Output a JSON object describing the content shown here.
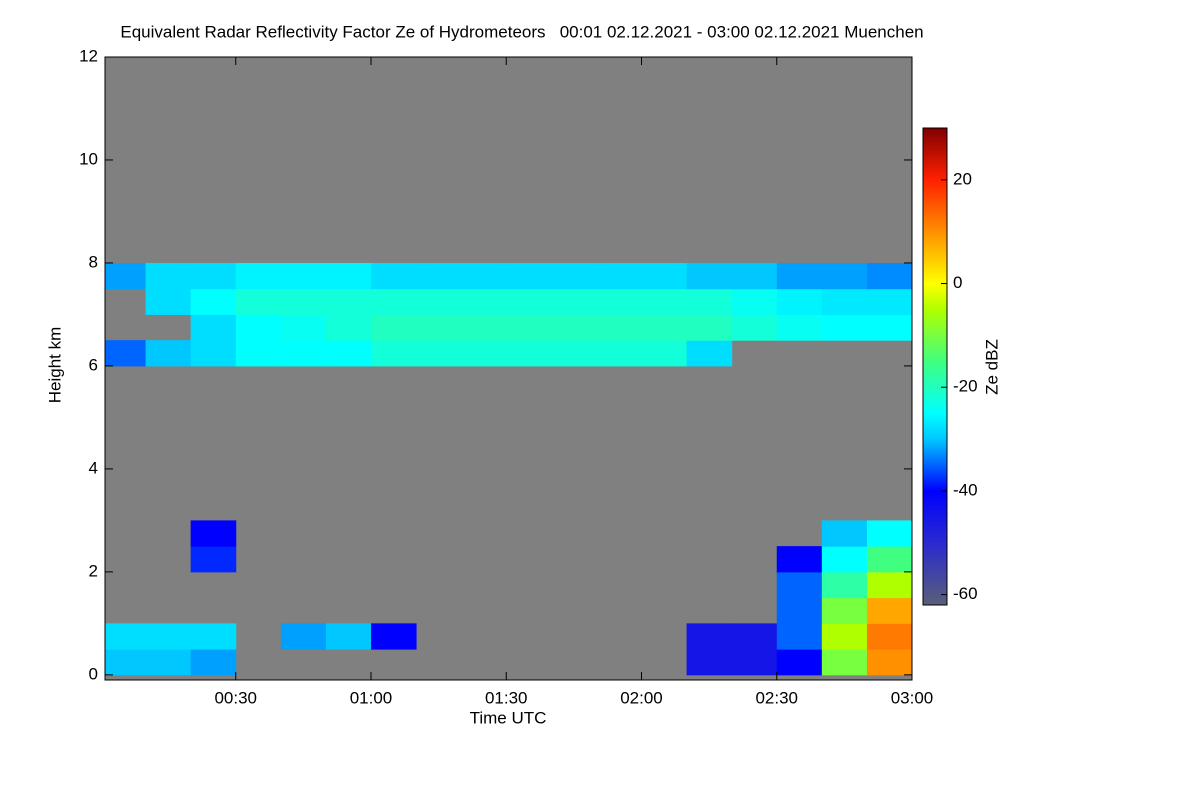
{
  "chart_data": {
    "type": "heatmap",
    "title": "Equivalent Radar Reflectivity Factor Ze of Hydrometeors   00:01 02.12.2021 - 03:00 02.12.2021 Muenchen",
    "x_label": "Time UTC",
    "y_label": "Height km",
    "colorbar_label": "Ze dBZ",
    "xlim": [
      1,
      180
    ],
    "ylim": [
      -0.1,
      12
    ],
    "xticks": [
      {
        "value": 30,
        "label": "00:30"
      },
      {
        "value": 60,
        "label": "01:00"
      },
      {
        "value": 90,
        "label": "01:30"
      },
      {
        "value": 120,
        "label": "02:00"
      },
      {
        "value": 150,
        "label": "02:30"
      },
      {
        "value": 180,
        "label": "03:00"
      }
    ],
    "yticks": [
      0,
      2,
      4,
      6,
      8,
      10,
      12
    ],
    "clim": [
      -62,
      30
    ],
    "cticks": [
      20,
      0,
      -20,
      -40,
      -60
    ],
    "background": "#808080",
    "colormap": [
      {
        "value": -62,
        "color": "#5a5f78"
      },
      {
        "value": -50,
        "color": "#2a2ad0"
      },
      {
        "value": -40,
        "color": "#0000ff"
      },
      {
        "value": -30,
        "color": "#00c8ff"
      },
      {
        "value": -25,
        "color": "#00ffff"
      },
      {
        "value": -15,
        "color": "#40ff80"
      },
      {
        "value": -5,
        "color": "#b0ff00"
      },
      {
        "value": 0,
        "color": "#ffff00"
      },
      {
        "value": 10,
        "color": "#ff9000"
      },
      {
        "value": 20,
        "color": "#ff2000"
      },
      {
        "value": 30,
        "color": "#800000"
      }
    ],
    "x_bins": [
      1,
      10,
      20,
      30,
      40,
      50,
      60,
      70,
      80,
      90,
      100,
      110,
      120,
      130,
      140,
      150,
      160,
      170,
      180
    ],
    "y_bins": [
      0,
      0.5,
      1,
      1.5,
      2,
      2.5,
      3,
      3.5,
      4,
      4.5,
      5,
      5.5,
      6,
      6.5,
      7,
      7.5,
      8
    ],
    "z": [
      [
        -30,
        -30,
        -32,
        null,
        null,
        null,
        null,
        null,
        null,
        null,
        null,
        null,
        null,
        -45,
        -45,
        -40,
        -10,
        10
      ],
      [
        -28,
        -28,
        -28,
        null,
        -32,
        -30,
        -40,
        null,
        null,
        null,
        null,
        null,
        null,
        -45,
        -45,
        -35,
        -5,
        12
      ],
      [
        null,
        null,
        null,
        null,
        null,
        null,
        null,
        null,
        null,
        null,
        null,
        null,
        null,
        null,
        null,
        -35,
        -10,
        8
      ],
      [
        null,
        null,
        null,
        null,
        null,
        null,
        null,
        null,
        null,
        null,
        null,
        null,
        null,
        null,
        null,
        -35,
        -18,
        -5
      ],
      [
        null,
        null,
        -38,
        null,
        null,
        null,
        null,
        null,
        null,
        null,
        null,
        null,
        null,
        null,
        null,
        -40,
        -25,
        -15
      ],
      [
        null,
        null,
        -40,
        null,
        null,
        null,
        null,
        null,
        null,
        null,
        null,
        null,
        null,
        null,
        null,
        null,
        -30,
        -25
      ],
      [
        null,
        null,
        null,
        null,
        null,
        null,
        null,
        null,
        null,
        null,
        null,
        null,
        null,
        null,
        null,
        null,
        null,
        null
      ],
      [
        null,
        null,
        null,
        null,
        null,
        null,
        null,
        null,
        null,
        null,
        null,
        null,
        null,
        null,
        null,
        null,
        null,
        null
      ],
      [
        null,
        null,
        null,
        null,
        null,
        null,
        null,
        null,
        null,
        null,
        null,
        null,
        null,
        null,
        null,
        null,
        null,
        null
      ],
      [
        null,
        null,
        null,
        null,
        null,
        null,
        null,
        null,
        null,
        null,
        null,
        null,
        null,
        null,
        null,
        null,
        null,
        null
      ],
      [
        null,
        null,
        null,
        null,
        null,
        null,
        null,
        null,
        null,
        null,
        null,
        null,
        null,
        null,
        null,
        null,
        null,
        null
      ],
      [
        null,
        null,
        null,
        null,
        null,
        null,
        null,
        null,
        null,
        null,
        null,
        null,
        null,
        null,
        null,
        null,
        null,
        null
      ],
      [
        -35,
        -30,
        -28,
        -25,
        -25,
        -25,
        -22,
        -22,
        -22,
        -22,
        -22,
        -22,
        -22,
        -28,
        null,
        null,
        null,
        null
      ],
      [
        null,
        null,
        -28,
        -25,
        -24,
        -22,
        -20,
        -20,
        -20,
        -20,
        -20,
        -20,
        -20,
        -20,
        -22,
        -24,
        -25,
        -25
      ],
      [
        null,
        -28,
        -25,
        -22,
        -22,
        -22,
        -22,
        -22,
        -22,
        -22,
        -22,
        -22,
        -22,
        -22,
        -24,
        -26,
        -27,
        -27
      ],
      [
        -32,
        -28,
        -28,
        -26,
        -26,
        -26,
        -28,
        -28,
        -28,
        -28,
        -28,
        -28,
        -28,
        -30,
        -30,
        -32,
        -32,
        -33
      ]
    ]
  }
}
